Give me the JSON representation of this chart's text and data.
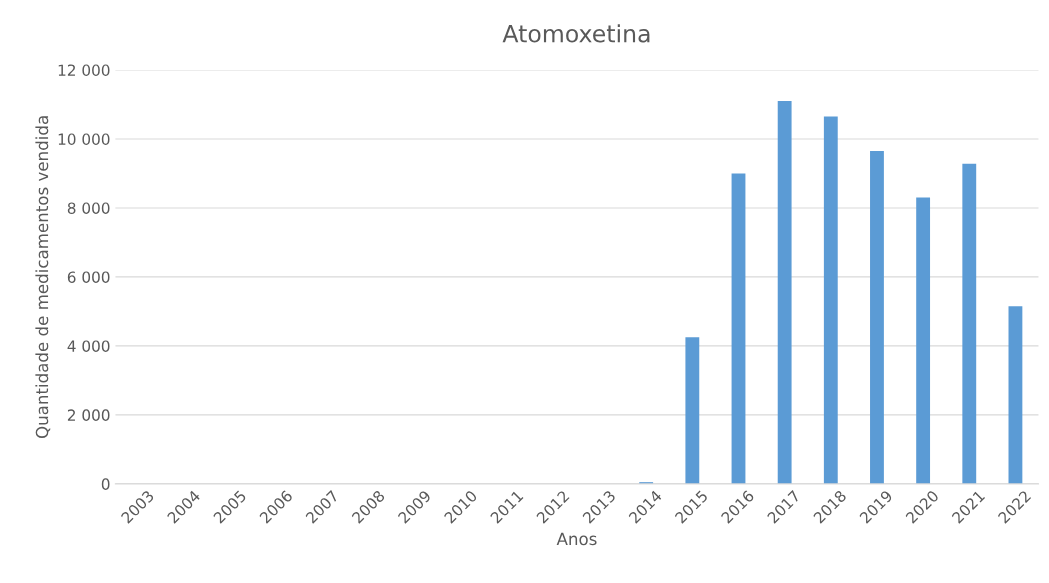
{
  "chart_data": {
    "type": "bar",
    "title": "Atomoxetina",
    "xlabel": "Anos",
    "ylabel": "Quantidade de medicamentos vendida",
    "categories": [
      "2003",
      "2004",
      "2005",
      "2006",
      "2007",
      "2008",
      "2009",
      "2010",
      "2011",
      "2012",
      "2013",
      "2014",
      "2015",
      "2016",
      "2017",
      "2018",
      "2019",
      "2020",
      "2021",
      "2022"
    ],
    "values": [
      0,
      0,
      0,
      0,
      0,
      0,
      0,
      0,
      0,
      0,
      0,
      50,
      4250,
      9000,
      11100,
      10650,
      9650,
      8300,
      9280,
      5150
    ],
    "color": "#5b9bd5",
    "ylim": [
      0,
      12000
    ],
    "yticks": [
      0,
      {
        "value": 2000,
        "label": "2 000"
      },
      {
        "value": 4000,
        "label": "4 000"
      },
      {
        "value": 6000,
        "label": "6 000"
      },
      {
        "value": 8000,
        "label": "8 000"
      },
      {
        "value": 10000,
        "label": "10 000"
      },
      {
        "value": 12000,
        "label": "12 000"
      }
    ],
    "grid": "y"
  }
}
